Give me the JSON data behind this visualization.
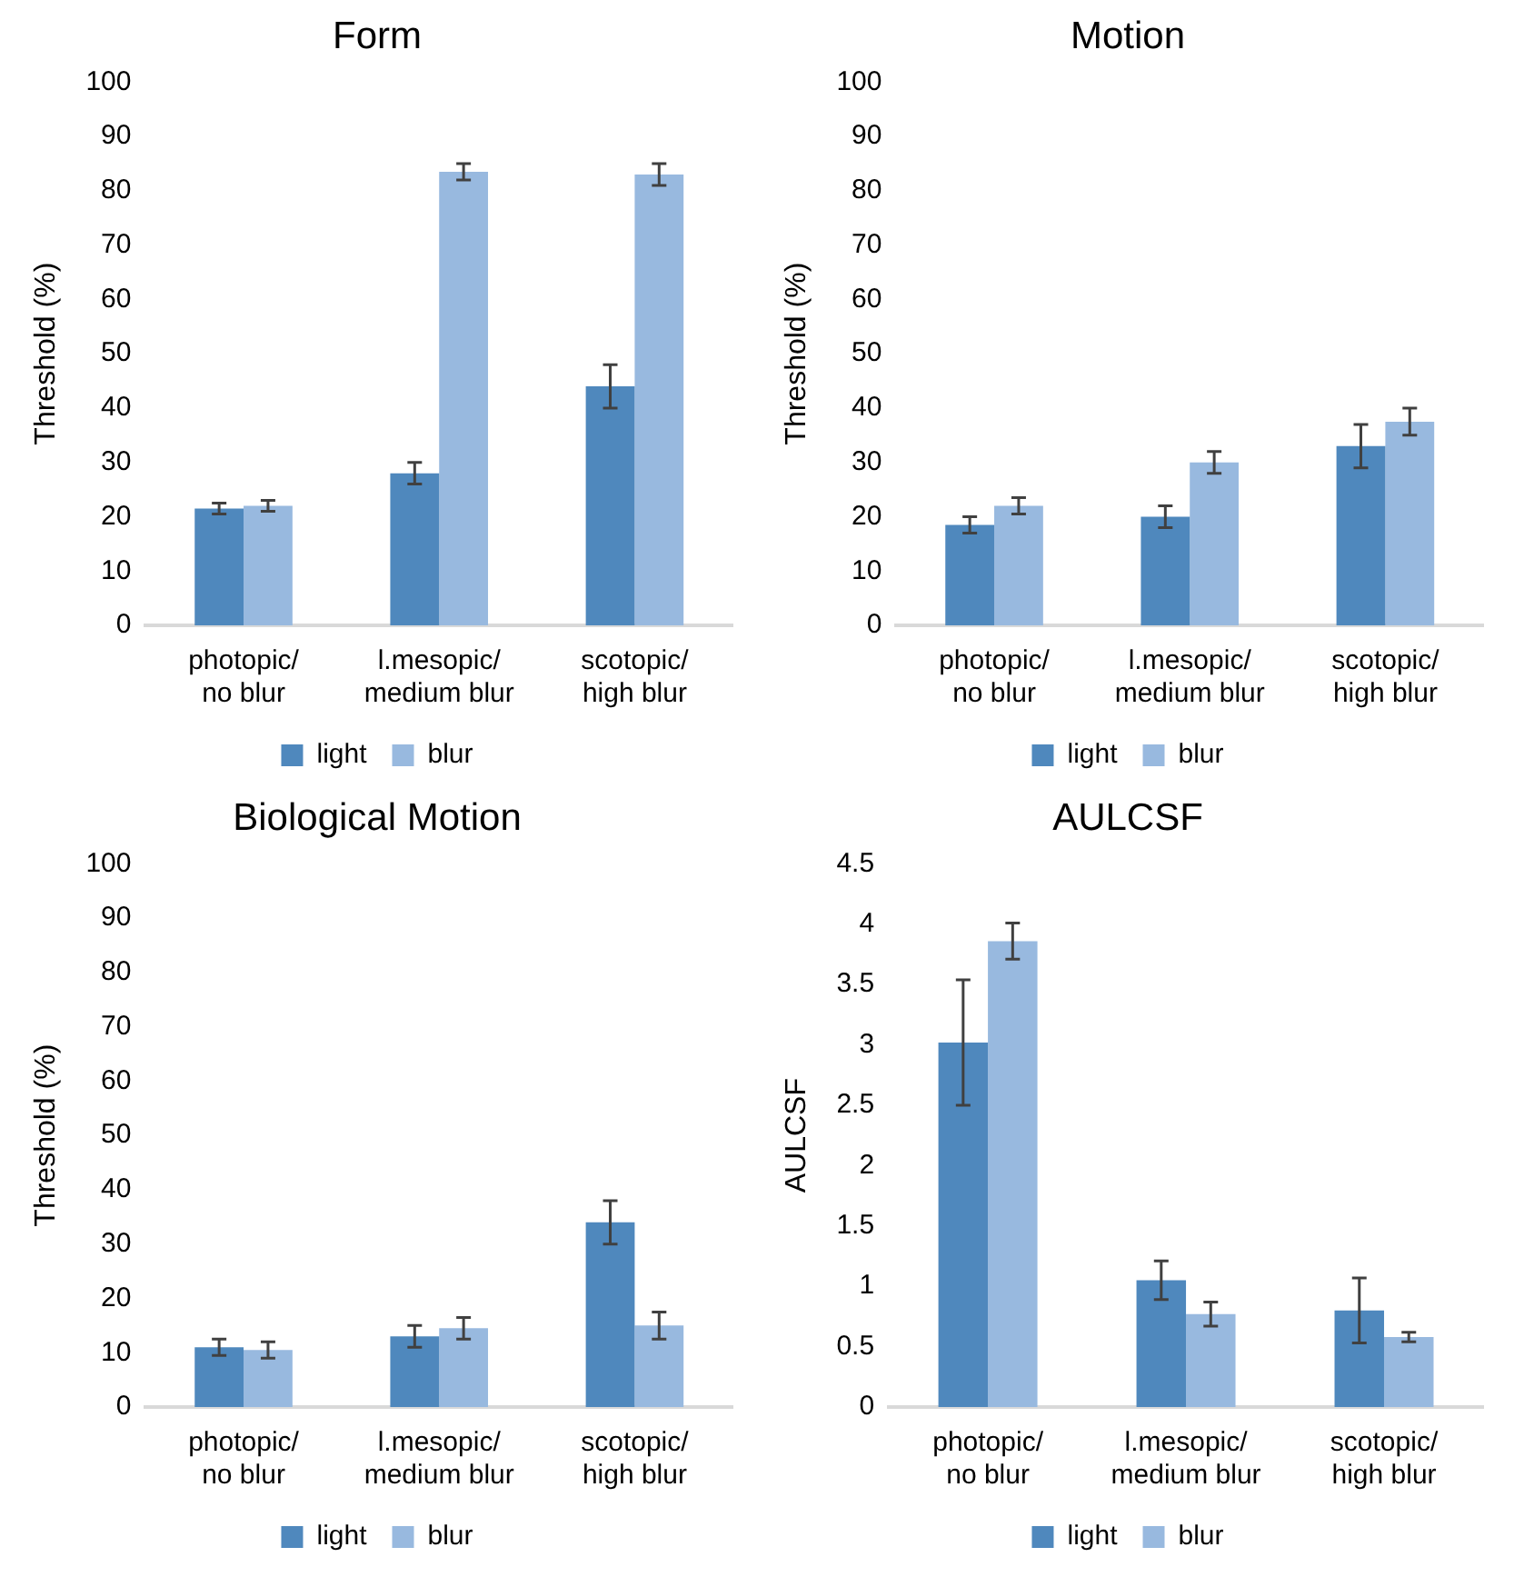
{
  "chart_data": [
    {
      "type": "bar",
      "title": "Form",
      "ylabel": "Threshold (%)",
      "categories": [
        "photopic/ no blur",
        "l.mesopic/ medium blur",
        "scotopic/ high blur"
      ],
      "ylim": [
        0,
        100
      ],
      "yticks": [
        0,
        10,
        20,
        30,
        40,
        50,
        60,
        70,
        80,
        90,
        100
      ],
      "grid": false,
      "legend": "bottom",
      "series": [
        {
          "name": "light",
          "color": "#4f88bd",
          "values": [
            21.5,
            28,
            44
          ],
          "errors": [
            1,
            2,
            4
          ]
        },
        {
          "name": "blur",
          "color": "#98b9df",
          "values": [
            22,
            83.5,
            83
          ],
          "errors": [
            1,
            1.5,
            2
          ]
        }
      ]
    },
    {
      "type": "bar",
      "title": "Motion",
      "ylabel": "Threshold (%)",
      "categories": [
        "photopic/ no blur",
        "l.mesopic/ medium blur",
        "scotopic/ high blur"
      ],
      "ylim": [
        0,
        100
      ],
      "yticks": [
        0,
        10,
        20,
        30,
        40,
        50,
        60,
        70,
        80,
        90,
        100
      ],
      "grid": false,
      "legend": "bottom",
      "series": [
        {
          "name": "light",
          "color": "#4f88bd",
          "values": [
            18.5,
            20,
            33
          ],
          "errors": [
            1.5,
            2,
            4
          ]
        },
        {
          "name": "blur",
          "color": "#98b9df",
          "values": [
            22,
            30,
            37.5
          ],
          "errors": [
            1.5,
            2,
            2.5
          ]
        }
      ]
    },
    {
      "type": "bar",
      "title": "Biological Motion",
      "ylabel": "Threshold (%)",
      "categories": [
        "photopic/ no blur",
        "l.mesopic/ medium blur",
        "scotopic/ high blur"
      ],
      "ylim": [
        0,
        100
      ],
      "yticks": [
        0,
        10,
        20,
        30,
        40,
        50,
        60,
        70,
        80,
        90,
        100
      ],
      "grid": false,
      "legend": "bottom",
      "series": [
        {
          "name": "light",
          "color": "#4f88bd",
          "values": [
            11,
            13,
            34
          ],
          "errors": [
            1.5,
            2,
            4
          ]
        },
        {
          "name": "blur",
          "color": "#98b9df",
          "values": [
            10.5,
            14.5,
            15
          ],
          "errors": [
            1.5,
            2,
            2.5
          ]
        }
      ]
    },
    {
      "type": "bar",
      "title": "AULCSF",
      "ylabel": "AULCSF",
      "categories": [
        "photopic/ no blur",
        "l.mesopic/ medium blur",
        "scotopic/ high blur"
      ],
      "ylim": [
        0,
        4.5
      ],
      "yticks": [
        0,
        0.5,
        1,
        1.5,
        2,
        2.5,
        3,
        3.5,
        4,
        4.5
      ],
      "grid": false,
      "legend": "bottom",
      "series": [
        {
          "name": "light",
          "color": "#4f88bd",
          "values": [
            3.02,
            1.05,
            0.8
          ],
          "errors": [
            0.52,
            0.16,
            0.27
          ]
        },
        {
          "name": "blur",
          "color": "#98b9df",
          "values": [
            3.86,
            0.77,
            0.58
          ],
          "errors": [
            0.15,
            0.1,
            0.04
          ]
        }
      ]
    }
  ]
}
